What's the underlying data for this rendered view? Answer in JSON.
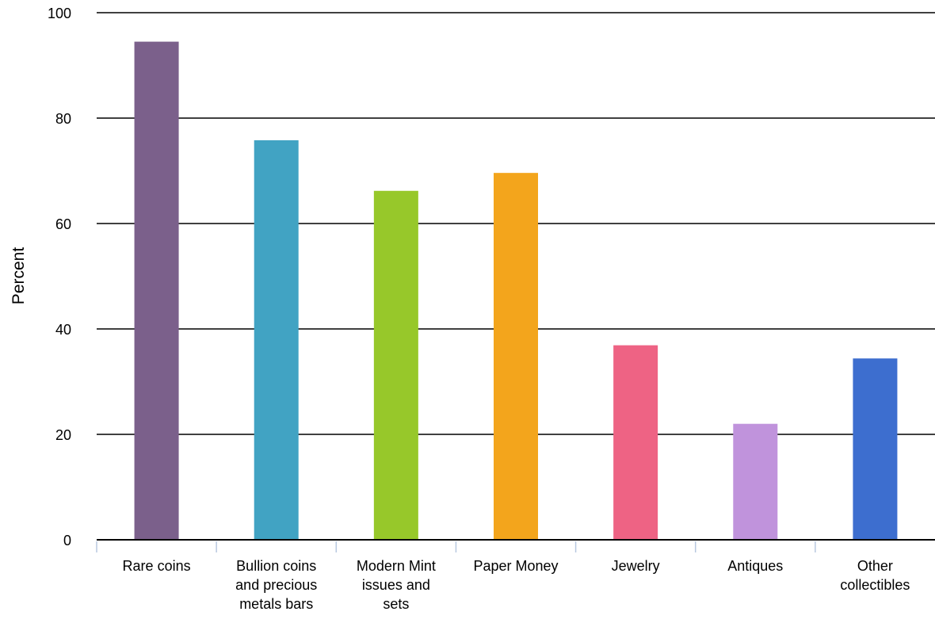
{
  "chart_data": {
    "type": "bar",
    "title": "",
    "xlabel": "",
    "ylabel": "Percent",
    "ylim": [
      0,
      100
    ],
    "yticks": [
      0,
      20,
      40,
      60,
      80,
      100
    ],
    "grid": true,
    "categories": [
      "Rare coins",
      "Bullion coins and precious metals bars",
      "Modern Mint issues and sets",
      "Paper Money",
      "Jewelry",
      "Antiques",
      "Other collectibles"
    ],
    "category_lines": [
      [
        "Rare coins"
      ],
      [
        "Bullion coins",
        "and precious",
        "metals bars"
      ],
      [
        "Modern Mint",
        "issues and",
        "sets"
      ],
      [
        "Paper Money"
      ],
      [
        "Jewelry"
      ],
      [
        "Antiques"
      ],
      [
        "Other",
        "collectibles"
      ]
    ],
    "values": [
      94.5,
      75.8,
      66.2,
      69.6,
      36.9,
      22.0,
      34.4
    ],
    "colors": [
      "#7b608b",
      "#41a3c3",
      "#97c82a",
      "#f3a51c",
      "#ee6384",
      "#c093dc",
      "#3d6ecf"
    ]
  }
}
